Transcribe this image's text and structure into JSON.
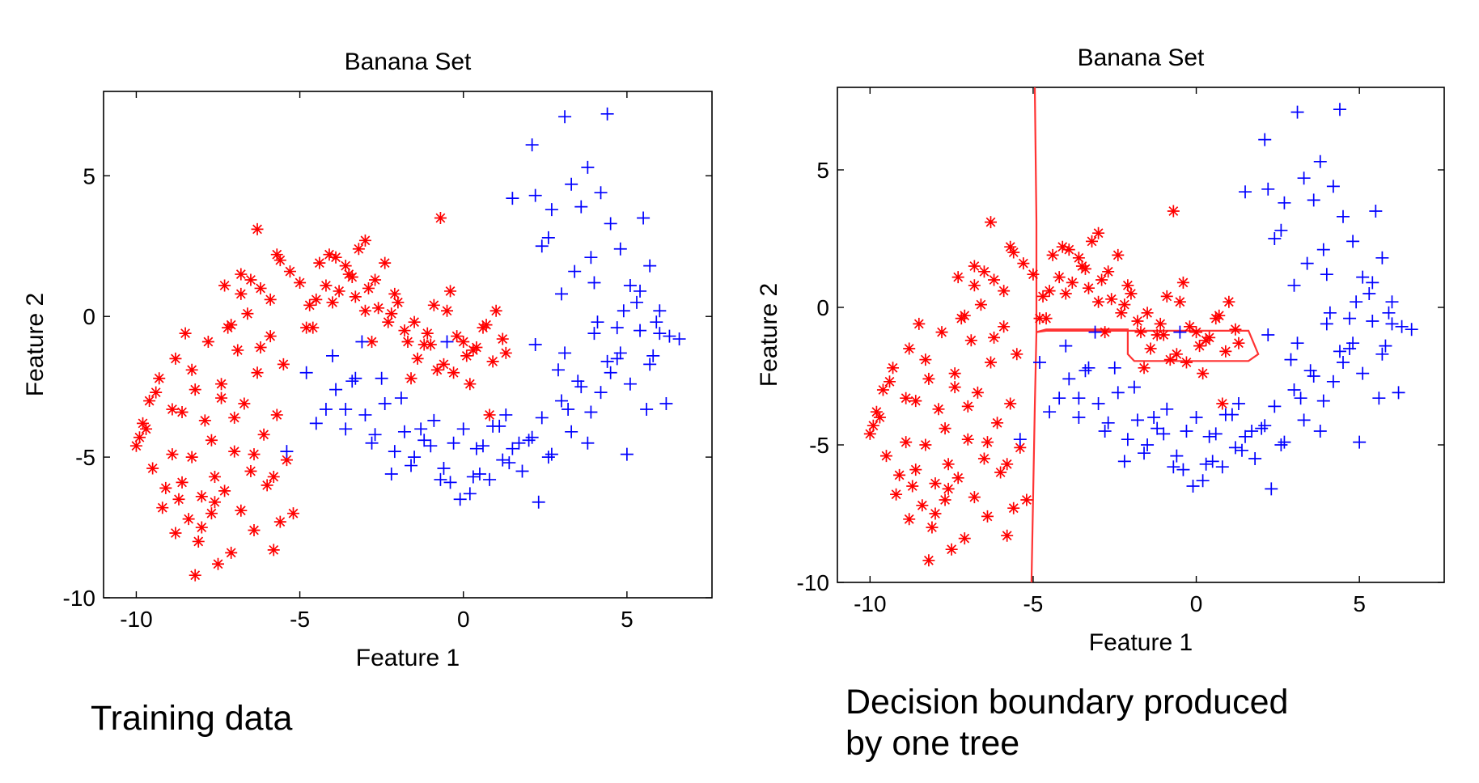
{
  "colors": {
    "class_a": "#ff0000",
    "class_b": "#0000ff",
    "boundary": "#ff3333",
    "axes": "#000000"
  },
  "captions": {
    "left": "Training data",
    "right_line1": "Decision boundary produced",
    "right_line2": "by one tree"
  },
  "chart_data": [
    {
      "type": "scatter",
      "title": "Banana Set",
      "xlabel": "Feature 1",
      "ylabel": "Feature 2",
      "xlim": [
        -11,
        7.6
      ],
      "ylim": [
        -10,
        8
      ],
      "xticks": [
        -10,
        -5,
        0,
        5
      ],
      "xtick_labels": [
        "-10",
        "-5",
        "0",
        "5"
      ],
      "yticks": [
        -10,
        -5,
        0,
        5
      ],
      "ytick_labels": [
        "-10",
        "-5",
        "0",
        "5"
      ],
      "grid": false,
      "series": [
        {
          "marker": "asterisk",
          "color": "#ff0000",
          "x": [
            -10.0,
            -9.8,
            -9.6,
            -9.5,
            -9.3,
            -9.1,
            -8.9,
            -8.8,
            -8.7,
            -8.6,
            -8.5,
            -8.4,
            -8.3,
            -8.2,
            -8.1,
            -8.0,
            -7.9,
            -7.8,
            -7.7,
            -7.6,
            -7.5,
            -7.4,
            -7.3,
            -7.2,
            -7.1,
            -7.0,
            -6.9,
            -6.8,
            -6.7,
            -6.6,
            -6.5,
            -6.4,
            -6.3,
            -6.2,
            -6.1,
            -6.0,
            -5.9,
            -5.8,
            -5.7,
            -5.6,
            -5.5,
            -5.4,
            -9.7,
            -9.2,
            -8.9,
            -8.6,
            -8.3,
            -8.0,
            -7.7,
            -7.4,
            -7.1,
            -6.8,
            -6.5,
            -6.2,
            -5.9,
            -5.6,
            -5.3,
            -5.0,
            -4.7,
            -4.4,
            -4.1,
            -3.8,
            -3.5,
            -3.2,
            -2.9,
            -2.6,
            -2.3,
            -2.0,
            -1.7,
            -1.4,
            -1.1,
            -0.8,
            -0.5,
            -0.2,
            0.1,
            0.4,
            0.7,
            1.0,
            1.3,
            -4.8,
            -4.5,
            -4.2,
            -3.9,
            -3.6,
            -3.3,
            -3.0,
            -2.7,
            -2.4,
            -2.1,
            -1.8,
            -1.5,
            -1.2,
            -0.9,
            -0.6,
            -0.3,
            0.0,
            0.3,
            0.6,
            0.9,
            1.2,
            -9.9,
            -9.4,
            -8.8,
            -8.2,
            -7.6,
            -7.0,
            -6.4,
            -5.8,
            -5.2,
            -4.6,
            -4.0,
            -3.4,
            -2.8,
            -2.2,
            -1.6,
            -1.0,
            -0.4,
            0.2,
            0.8,
            -6.3,
            -5.7,
            -0.7,
            -3.0,
            -6.8,
            -7.3
          ],
          "y": [
            -4.6,
            -3.8,
            -3.0,
            -5.4,
            -2.2,
            -6.1,
            -4.9,
            -1.5,
            -6.5,
            -3.4,
            -0.6,
            -7.2,
            -5.0,
            -2.6,
            -8.0,
            -6.4,
            -3.7,
            -0.9,
            -7.0,
            -5.7,
            -8.8,
            -2.9,
            -6.2,
            -0.4,
            -8.4,
            -4.8,
            -1.2,
            -6.9,
            -3.1,
            0.1,
            -5.5,
            -7.6,
            -2.0,
            1.0,
            -4.2,
            -6.0,
            -0.7,
            -8.3,
            -3.5,
            -7.3,
            -1.7,
            -5.1,
            -4.0,
            -6.8,
            -3.3,
            -5.9,
            -1.9,
            -7.5,
            -4.4,
            -2.4,
            -0.3,
            0.8,
            1.3,
            -1.1,
            0.6,
            2.0,
            1.6,
            1.2,
            0.4,
            1.9,
            2.2,
            0.9,
            1.5,
            2.4,
            1.0,
            0.3,
            -0.2,
            0.5,
            -0.9,
            -1.5,
            -0.6,
            -1.9,
            0.2,
            -0.7,
            -1.4,
            -1.1,
            -0.3,
            0.2,
            -1.3,
            -0.4,
            0.6,
            1.1,
            2.1,
            1.8,
            0.7,
            0.2,
            1.3,
            1.9,
            0.8,
            -0.5,
            -0.2,
            -1.0,
            0.4,
            -1.7,
            -2.0,
            -0.9,
            -1.2,
            -0.4,
            -1.6,
            -0.8,
            -4.3,
            -2.7,
            -7.7,
            -9.2,
            -6.6,
            -3.6,
            -4.9,
            -5.7,
            -7.0,
            -0.4,
            0.5,
            1.4,
            -0.9,
            0.1,
            -2.2,
            -1.0,
            0.9,
            -2.4,
            -3.5,
            3.1,
            2.2,
            3.5,
            2.7,
            1.5,
            1.1
          ],
          "name": ""
        },
        {
          "marker": "plus",
          "color": "#0000ff",
          "x": [
            -5.4,
            -4.8,
            -4.5,
            -4.2,
            -3.9,
            -3.6,
            -3.3,
            -3.0,
            -2.7,
            -2.4,
            -2.1,
            -1.8,
            -1.5,
            -1.2,
            -0.9,
            -0.6,
            -0.3,
            0.0,
            0.3,
            0.6,
            0.9,
            1.2,
            1.5,
            1.8,
            2.1,
            2.4,
            2.7,
            3.0,
            3.3,
            3.6,
            3.9,
            4.2,
            4.5,
            4.8,
            5.1,
            5.4,
            5.7,
            6.0,
            6.3,
            6.6,
            -4.0,
            -3.4,
            -2.8,
            -2.2,
            -1.6,
            -1.0,
            -0.4,
            0.2,
            0.8,
            1.4,
            2.0,
            2.6,
            3.2,
            3.8,
            4.4,
            5.0,
            5.6,
            6.2,
            -1.9,
            -1.3,
            -0.7,
            -0.1,
            0.5,
            1.1,
            1.7,
            2.3,
            2.9,
            3.5,
            4.1,
            4.7,
            5.3,
            5.9,
            -3.6,
            -3.1,
            -2.5,
            -0.5,
            0.4,
            1.3,
            2.2,
            3.1,
            4.0,
            4.9,
            5.8,
            1.5,
            2.1,
            2.7,
            3.3,
            3.9,
            4.5,
            5.1,
            5.7,
            2.4,
            3.0,
            3.6,
            4.2,
            4.8,
            5.4,
            6.0,
            3.1,
            4.4,
            2.2,
            3.8,
            5.5,
            4.0,
            2.6,
            3.4,
            4.7
          ],
          "y": [
            -4.8,
            -2.0,
            -3.8,
            -3.3,
            -2.6,
            -4.0,
            -2.2,
            -3.5,
            -4.2,
            -3.1,
            -4.8,
            -4.1,
            -5.0,
            -4.4,
            -3.7,
            -5.4,
            -4.5,
            -4.0,
            -5.7,
            -4.6,
            -3.9,
            -5.1,
            -4.7,
            -5.5,
            -4.3,
            -3.6,
            -4.9,
            -3.0,
            -4.1,
            -2.5,
            -3.4,
            -2.7,
            -2.0,
            -1.3,
            -2.4,
            -0.5,
            -1.7,
            0.2,
            -0.7,
            -0.8,
            -1.4,
            -2.3,
            -4.5,
            -5.6,
            -5.3,
            -4.6,
            -5.9,
            -6.3,
            -5.8,
            -5.2,
            -4.4,
            -5.0,
            -3.3,
            -4.5,
            -1.6,
            -4.9,
            -3.3,
            -3.1,
            -2.9,
            -4.0,
            -5.8,
            -6.5,
            -5.6,
            -3.9,
            -4.5,
            -6.6,
            -1.9,
            -2.3,
            -0.2,
            -1.5,
            0.5,
            -0.2,
            -3.3,
            -0.9,
            -2.2,
            -0.9,
            -4.7,
            -3.5,
            -1.0,
            -1.3,
            -0.6,
            0.2,
            -1.4,
            4.2,
            6.1,
            3.8,
            4.7,
            2.1,
            3.3,
            1.1,
            1.8,
            2.5,
            0.8,
            3.9,
            4.4,
            2.4,
            0.9,
            -0.6,
            7.1,
            7.2,
            4.3,
            5.3,
            3.5,
            1.2,
            2.8,
            1.6,
            -0.4
          ],
          "name": ""
        }
      ]
    },
    {
      "type": "scatter",
      "title": "Banana Set",
      "xlabel": "Feature 1",
      "ylabel": "Feature 2",
      "xlim": [
        -11,
        7.6
      ],
      "ylim": [
        -10,
        8
      ],
      "xticks": [
        -10,
        -5,
        0,
        5
      ],
      "xtick_labels": [
        "-10",
        "-5",
        "0",
        "5"
      ],
      "yticks": [
        -10,
        -5,
        0,
        5
      ],
      "ytick_labels": [
        "-10",
        "-5",
        "0",
        "5"
      ],
      "grid": false,
      "decision_boundary": {
        "x": [
          -5.05,
          -4.95,
          -4.9,
          -4.6,
          1.6,
          1.9,
          1.9,
          1.6,
          -1.9,
          -2.1,
          -2.1,
          -4.6,
          -4.9,
          -4.9,
          -4.95
        ],
        "y": [
          -10,
          -3.6,
          -0.9,
          -0.85,
          -0.85,
          -1.7,
          -1.7,
          -1.95,
          -1.95,
          -1.7,
          -0.8,
          -0.8,
          -0.9,
          3.1,
          8.0
        ]
      },
      "series": [
        {
          "marker": "asterisk",
          "color": "#ff0000",
          "x": [
            -10.0,
            -9.8,
            -9.6,
            -9.5,
            -9.3,
            -9.1,
            -8.9,
            -8.8,
            -8.7,
            -8.6,
            -8.5,
            -8.4,
            -8.3,
            -8.2,
            -8.1,
            -8.0,
            -7.9,
            -7.8,
            -7.7,
            -7.6,
            -7.5,
            -7.4,
            -7.3,
            -7.2,
            -7.1,
            -7.0,
            -6.9,
            -6.8,
            -6.7,
            -6.6,
            -6.5,
            -6.4,
            -6.3,
            -6.2,
            -6.1,
            -6.0,
            -5.9,
            -5.8,
            -5.7,
            -5.6,
            -5.5,
            -5.4,
            -9.7,
            -9.2,
            -8.9,
            -8.6,
            -8.3,
            -8.0,
            -7.7,
            -7.4,
            -7.1,
            -6.8,
            -6.5,
            -6.2,
            -5.9,
            -5.6,
            -5.3,
            -5.0,
            -4.7,
            -4.4,
            -4.1,
            -3.8,
            -3.5,
            -3.2,
            -2.9,
            -2.6,
            -2.3,
            -2.0,
            -1.7,
            -1.4,
            -1.1,
            -0.8,
            -0.5,
            -0.2,
            0.1,
            0.4,
            0.7,
            1.0,
            1.3,
            -4.8,
            -4.5,
            -4.2,
            -3.9,
            -3.6,
            -3.3,
            -3.0,
            -2.7,
            -2.4,
            -2.1,
            -1.8,
            -1.5,
            -1.2,
            -0.9,
            -0.6,
            -0.3,
            0.0,
            0.3,
            0.6,
            0.9,
            1.2,
            -9.9,
            -9.4,
            -8.8,
            -8.2,
            -7.6,
            -7.0,
            -6.4,
            -5.8,
            -5.2,
            -4.6,
            -4.0,
            -3.4,
            -2.8,
            -2.2,
            -1.6,
            -1.0,
            -0.4,
            0.2,
            0.8,
            -6.3,
            -5.7,
            -0.7,
            -3.0,
            -6.8,
            -7.3
          ],
          "y": [
            -4.6,
            -3.8,
            -3.0,
            -5.4,
            -2.2,
            -6.1,
            -4.9,
            -1.5,
            -6.5,
            -3.4,
            -0.6,
            -7.2,
            -5.0,
            -2.6,
            -8.0,
            -6.4,
            -3.7,
            -0.9,
            -7.0,
            -5.7,
            -8.8,
            -2.9,
            -6.2,
            -0.4,
            -8.4,
            -4.8,
            -1.2,
            -6.9,
            -3.1,
            0.1,
            -5.5,
            -7.6,
            -2.0,
            1.0,
            -4.2,
            -6.0,
            -0.7,
            -8.3,
            -3.5,
            -7.3,
            -1.7,
            -5.1,
            -4.0,
            -6.8,
            -3.3,
            -5.9,
            -1.9,
            -7.5,
            -4.4,
            -2.4,
            -0.3,
            0.8,
            1.3,
            -1.1,
            0.6,
            2.0,
            1.6,
            1.2,
            0.4,
            1.9,
            2.2,
            0.9,
            1.5,
            2.4,
            1.0,
            0.3,
            -0.2,
            0.5,
            -0.9,
            -1.5,
            -0.6,
            -1.9,
            0.2,
            -0.7,
            -1.4,
            -1.1,
            -0.3,
            0.2,
            -1.3,
            -0.4,
            0.6,
            1.1,
            2.1,
            1.8,
            0.7,
            0.2,
            1.3,
            1.9,
            0.8,
            -0.5,
            -0.2,
            -1.0,
            0.4,
            -1.7,
            -2.0,
            -0.9,
            -1.2,
            -0.4,
            -1.6,
            -0.8,
            -4.3,
            -2.7,
            -7.7,
            -9.2,
            -6.6,
            -3.6,
            -4.9,
            -5.7,
            -7.0,
            -0.4,
            0.5,
            1.4,
            -0.9,
            0.1,
            -2.2,
            -1.0,
            0.9,
            -2.4,
            -3.5,
            3.1,
            2.2,
            3.5,
            2.7,
            1.5,
            1.1
          ],
          "name": ""
        },
        {
          "marker": "plus",
          "color": "#0000ff",
          "x": [
            -5.4,
            -4.8,
            -4.5,
            -4.2,
            -3.9,
            -3.6,
            -3.3,
            -3.0,
            -2.7,
            -2.4,
            -2.1,
            -1.8,
            -1.5,
            -1.2,
            -0.9,
            -0.6,
            -0.3,
            0.0,
            0.3,
            0.6,
            0.9,
            1.2,
            1.5,
            1.8,
            2.1,
            2.4,
            2.7,
            3.0,
            3.3,
            3.6,
            3.9,
            4.2,
            4.5,
            4.8,
            5.1,
            5.4,
            5.7,
            6.0,
            6.3,
            6.6,
            -4.0,
            -3.4,
            -2.8,
            -2.2,
            -1.6,
            -1.0,
            -0.4,
            0.2,
            0.8,
            1.4,
            2.0,
            2.6,
            3.2,
            3.8,
            4.4,
            5.0,
            5.6,
            6.2,
            -1.9,
            -1.3,
            -0.7,
            -0.1,
            0.5,
            1.1,
            1.7,
            2.3,
            2.9,
            3.5,
            4.1,
            4.7,
            5.3,
            5.9,
            -3.6,
            -3.1,
            -2.5,
            -0.5,
            0.4,
            1.3,
            2.2,
            3.1,
            4.0,
            4.9,
            5.8,
            1.5,
            2.1,
            2.7,
            3.3,
            3.9,
            4.5,
            5.1,
            5.7,
            2.4,
            3.0,
            3.6,
            4.2,
            4.8,
            5.4,
            6.0,
            3.1,
            4.4,
            2.2,
            3.8,
            5.5,
            4.0,
            2.6,
            3.4,
            4.7
          ],
          "y": [
            -4.8,
            -2.0,
            -3.8,
            -3.3,
            -2.6,
            -4.0,
            -2.2,
            -3.5,
            -4.2,
            -3.1,
            -4.8,
            -4.1,
            -5.0,
            -4.4,
            -3.7,
            -5.4,
            -4.5,
            -4.0,
            -5.7,
            -4.6,
            -3.9,
            -5.1,
            -4.7,
            -5.5,
            -4.3,
            -3.6,
            -4.9,
            -3.0,
            -4.1,
            -2.5,
            -3.4,
            -2.7,
            -2.0,
            -1.3,
            -2.4,
            -0.5,
            -1.7,
            0.2,
            -0.7,
            -0.8,
            -1.4,
            -2.3,
            -4.5,
            -5.6,
            -5.3,
            -4.6,
            -5.9,
            -6.3,
            -5.8,
            -5.2,
            -4.4,
            -5.0,
            -3.3,
            -4.5,
            -1.6,
            -4.9,
            -3.3,
            -3.1,
            -2.9,
            -4.0,
            -5.8,
            -6.5,
            -5.6,
            -3.9,
            -4.5,
            -6.6,
            -1.9,
            -2.3,
            -0.2,
            -1.5,
            0.5,
            -0.2,
            -3.3,
            -0.9,
            -2.2,
            -0.9,
            -4.7,
            -3.5,
            -1.0,
            -1.3,
            -0.6,
            0.2,
            -1.4,
            4.2,
            6.1,
            3.8,
            4.7,
            2.1,
            3.3,
            1.1,
            1.8,
            2.5,
            0.8,
            3.9,
            4.4,
            2.4,
            0.9,
            -0.6,
            7.1,
            7.2,
            4.3,
            5.3,
            3.5,
            1.2,
            2.8,
            1.6,
            -0.4
          ],
          "name": ""
        }
      ]
    }
  ]
}
